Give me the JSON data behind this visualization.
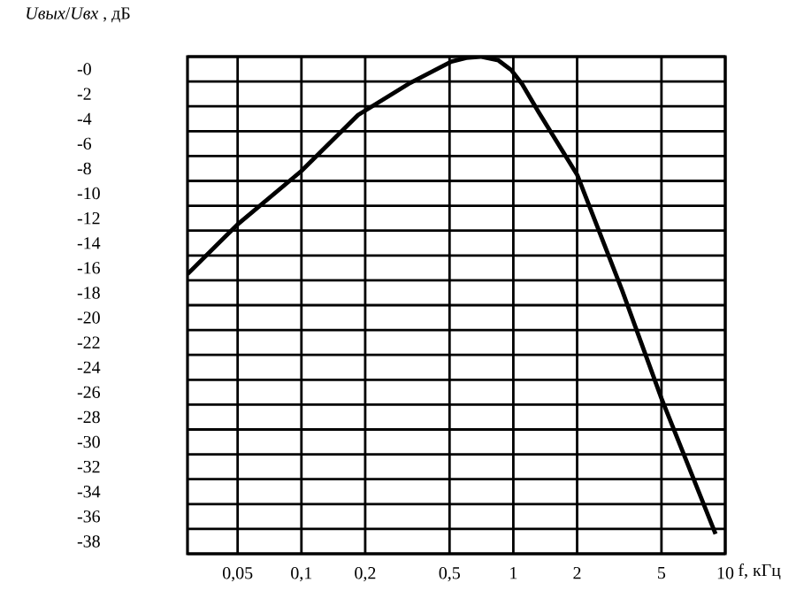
{
  "chart_data": {
    "type": "line",
    "ylabel": "*Uвых*/*Uвх* , дБ",
    "xlabel": "f, кГц",
    "log": "x",
    "x": [
      0.029,
      0.05,
      0.1,
      0.185,
      0.327,
      0.51,
      0.6,
      0.7,
      0.85,
      0.98,
      1.1,
      1.32,
      2.0,
      3.26,
      5.0,
      9.0
    ],
    "series": [
      {
        "color": "#000000",
        "values": [
          -16.5,
          -12.5,
          -8.2,
          -3.7,
          -1.1,
          0.6,
          0.9,
          1.0,
          0.7,
          -0.1,
          -1.2,
          -3.5,
          -8.5,
          -17.8,
          -26.5,
          -37.4
        ]
      }
    ],
    "xlim": [
      0.029,
      10
    ],
    "xticks": [
      {
        "value": 0.05,
        "label": "0,05"
      },
      {
        "value": 0.1,
        "label": "0,1"
      },
      {
        "value": 0.2,
        "label": "0,2"
      },
      {
        "value": 0.5,
        "label": "0,5"
      },
      1,
      2,
      5,
      10
    ],
    "ylim": [
      -39,
      1
    ],
    "yticks": [
      {
        "value": 0,
        "label": "-0"
      },
      -2,
      -4,
      -6,
      -8,
      -10,
      -12,
      -14,
      -16,
      -18,
      -20,
      -22,
      -24,
      -26,
      -28,
      -30,
      -32,
      -34,
      -36,
      -38
    ],
    "grid": true,
    "line_style": "solid",
    "marker": "none"
  }
}
